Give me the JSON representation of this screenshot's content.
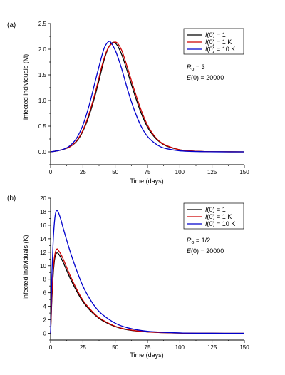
{
  "chart_data": [
    {
      "type": "line",
      "panel_label": "(a)",
      "xlabel": "Time (days)",
      "ylabel": "Infected individuals (M)",
      "xlim": [
        0,
        150
      ],
      "ylim": [
        -0.25,
        2.5
      ],
      "xticks": [
        0,
        25,
        50,
        75,
        100,
        125,
        150
      ],
      "yticks": [
        0.0,
        0.5,
        1.0,
        1.5,
        2.0,
        2.5
      ],
      "ytick_labels": [
        "0.0",
        "0.5",
        "1.0",
        "1.5",
        "2.0",
        "2.5"
      ],
      "legend_position": "top-right",
      "annotation": {
        "r0_sym": "R",
        "r0_sub": "o",
        "r0_val": " = 3",
        "e_sym": "E",
        "e_val": "(0) = 20000"
      },
      "series": [
        {
          "name": "I(0) = 1",
          "name_parts": [
            "I",
            "(0) = 1"
          ],
          "color": "#000000",
          "x": [
            0,
            5,
            10,
            15,
            20,
            25,
            30,
            35,
            40,
            42,
            45,
            48,
            50,
            52,
            55,
            58,
            60,
            65,
            70,
            75,
            80,
            85,
            90,
            100,
            110,
            120,
            130,
            150
          ],
          "values": [
            0.0,
            0.02,
            0.05,
            0.1,
            0.2,
            0.4,
            0.72,
            1.15,
            1.65,
            1.84,
            2.04,
            2.13,
            2.12,
            2.06,
            1.9,
            1.68,
            1.52,
            1.12,
            0.76,
            0.48,
            0.3,
            0.18,
            0.11,
            0.04,
            0.015,
            0.005,
            0.002,
            0.0
          ]
        },
        {
          "name": "I(0) = 1 K",
          "name_parts": [
            "I",
            "(0) = 1 K"
          ],
          "color": "#cc0000",
          "x": [
            0,
            5,
            10,
            15,
            20,
            25,
            30,
            35,
            40,
            43,
            45,
            48,
            50,
            52,
            55,
            58,
            60,
            65,
            70,
            75,
            80,
            85,
            90,
            100,
            110,
            120,
            130,
            150
          ],
          "values": [
            0.0,
            0.02,
            0.05,
            0.1,
            0.21,
            0.42,
            0.76,
            1.2,
            1.7,
            1.94,
            2.04,
            2.12,
            2.14,
            2.11,
            1.98,
            1.76,
            1.6,
            1.19,
            0.82,
            0.52,
            0.32,
            0.19,
            0.12,
            0.04,
            0.015,
            0.005,
            0.002,
            0.0
          ]
        },
        {
          "name": "I(0) = 10 K",
          "name_parts": [
            "I",
            "(0) = 10 K"
          ],
          "color": "#0000cc",
          "x": [
            0,
            5,
            10,
            15,
            20,
            25,
            30,
            35,
            40,
            42,
            45,
            47,
            50,
            52,
            55,
            60,
            65,
            70,
            75,
            80,
            85,
            90,
            100,
            110,
            120,
            130,
            150
          ],
          "values": [
            0.0,
            0.02,
            0.05,
            0.12,
            0.26,
            0.52,
            0.92,
            1.42,
            1.9,
            2.05,
            2.15,
            2.12,
            1.98,
            1.85,
            1.62,
            1.18,
            0.8,
            0.5,
            0.3,
            0.18,
            0.1,
            0.06,
            0.02,
            0.008,
            0.003,
            0.001,
            0.0
          ]
        }
      ]
    },
    {
      "type": "line",
      "panel_label": "(b)",
      "xlabel": "Time (days)",
      "ylabel": "Infected individuals (K)",
      "xlim": [
        0,
        150
      ],
      "ylim": [
        -1,
        20
      ],
      "xticks": [
        0,
        25,
        50,
        75,
        100,
        125,
        150
      ],
      "yticks": [
        0,
        2,
        4,
        6,
        8,
        10,
        12,
        14,
        16,
        18,
        20
      ],
      "ytick_labels": [
        "0",
        "2",
        "4",
        "6",
        "8",
        "10",
        "12",
        "14",
        "16",
        "18",
        "20"
      ],
      "legend_position": "top-right",
      "annotation": {
        "r0_sym": "R",
        "r0_sub": "o",
        "r0_val": " = 1/2",
        "e_sym": "E",
        "e_val": "(0) = 20000"
      },
      "series": [
        {
          "name": "I(0) = 1",
          "name_parts": [
            "I",
            "(0) = 1"
          ],
          "color": "#000000",
          "x": [
            0,
            0.5,
            1,
            2,
            3,
            4,
            5,
            6,
            8,
            10,
            15,
            20,
            25,
            30,
            35,
            40,
            50,
            60,
            75,
            100,
            125,
            150
          ],
          "values": [
            0.0,
            2.5,
            5.0,
            8.6,
            10.8,
            11.7,
            11.9,
            11.8,
            11.2,
            10.4,
            8.2,
            6.3,
            4.7,
            3.5,
            2.6,
            1.9,
            1.0,
            0.5,
            0.2,
            0.04,
            0.01,
            0.0
          ]
        },
        {
          "name": "I(0) = 1 K",
          "name_parts": [
            "I",
            "(0) = 1 K"
          ],
          "color": "#cc0000",
          "x": [
            0,
            0.5,
            1,
            2,
            3,
            4,
            5,
            6,
            8,
            10,
            15,
            20,
            25,
            30,
            35,
            40,
            50,
            60,
            75,
            100,
            125,
            150
          ],
          "values": [
            0.0,
            2.8,
            5.5,
            9.2,
            11.3,
            12.2,
            12.5,
            12.3,
            11.7,
            10.9,
            8.6,
            6.6,
            4.9,
            3.7,
            2.7,
            2.0,
            1.05,
            0.55,
            0.2,
            0.04,
            0.01,
            0.0
          ]
        },
        {
          "name": "I(0) = 10 K",
          "name_parts": [
            "I",
            "(0) = 10 K"
          ],
          "color": "#0000cc",
          "x": [
            0,
            0.5,
            1,
            2,
            3,
            4,
            5,
            6,
            8,
            10,
            15,
            20,
            25,
            30,
            35,
            40,
            50,
            60,
            75,
            100,
            125,
            150
          ],
          "values": [
            0.0,
            4.5,
            8.5,
            13.6,
            16.5,
            17.9,
            18.2,
            17.9,
            16.8,
            15.4,
            12.2,
            9.4,
            7.0,
            5.2,
            3.8,
            2.8,
            1.5,
            0.8,
            0.3,
            0.06,
            0.01,
            0.0
          ]
        }
      ]
    }
  ]
}
